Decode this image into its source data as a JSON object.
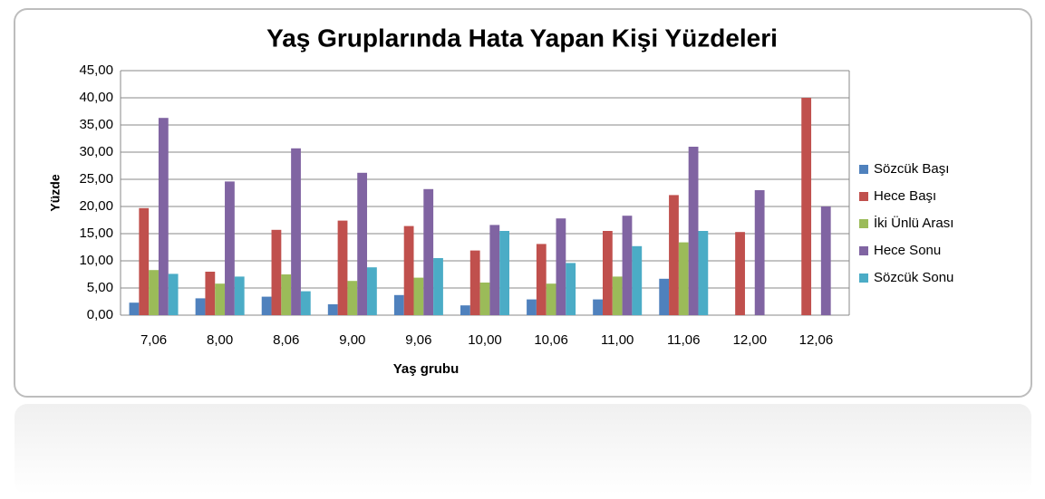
{
  "chart_data": {
    "type": "bar",
    "title": "Yaş Gruplarında Hata Yapan Kişi Yüzdeleri",
    "x_label": "Yaş grubu",
    "y_label": "Yüzde",
    "categories": [
      "7,06",
      "8,00",
      "8,06",
      "9,00",
      "9,06",
      "10,00",
      "10,06",
      "11,00",
      "11,06",
      "12,00",
      "12,06"
    ],
    "series": [
      {
        "name": "Sözcük Başı",
        "color": "#4f81bd",
        "values": [
          2.3,
          3.1,
          3.4,
          2.0,
          3.7,
          1.8,
          2.9,
          2.9,
          6.7,
          0,
          0
        ]
      },
      {
        "name": "Hece Başı",
        "color": "#c0504d",
        "values": [
          19.7,
          8.0,
          15.7,
          17.4,
          16.4,
          11.9,
          13.1,
          15.5,
          22.1,
          15.3,
          40.0
        ]
      },
      {
        "name": "İki Ünlü Arası",
        "color": "#9bbb59",
        "values": [
          8.3,
          5.8,
          7.5,
          6.3,
          6.9,
          6.0,
          5.8,
          7.1,
          13.4,
          0,
          0
        ]
      },
      {
        "name": "Hece Sonu",
        "color": "#8064a2",
        "values": [
          36.3,
          24.6,
          30.7,
          26.2,
          23.2,
          16.6,
          17.8,
          18.3,
          31.0,
          23.0,
          20.0
        ]
      },
      {
        "name": "Sözcük Sonu",
        "color": "#4bacc6",
        "values": [
          7.6,
          7.1,
          4.4,
          8.8,
          10.5,
          15.5,
          9.6,
          12.7,
          15.5,
          0,
          0
        ]
      }
    ],
    "ylim": [
      0,
      45
    ],
    "yticks": [
      {
        "value": 0,
        "label": "0,00"
      },
      {
        "value": 5,
        "label": "5,00"
      },
      {
        "value": 10,
        "label": "10,00"
      },
      {
        "value": 15,
        "label": "15,00"
      },
      {
        "value": 20,
        "label": "20,00"
      },
      {
        "value": 25,
        "label": "25,00"
      },
      {
        "value": 30,
        "label": "30,00"
      },
      {
        "value": 35,
        "label": "35,00"
      },
      {
        "value": 40,
        "label": "40,00"
      },
      {
        "value": 45,
        "label": "45,00"
      }
    ],
    "grid": true,
    "legend": "right"
  }
}
